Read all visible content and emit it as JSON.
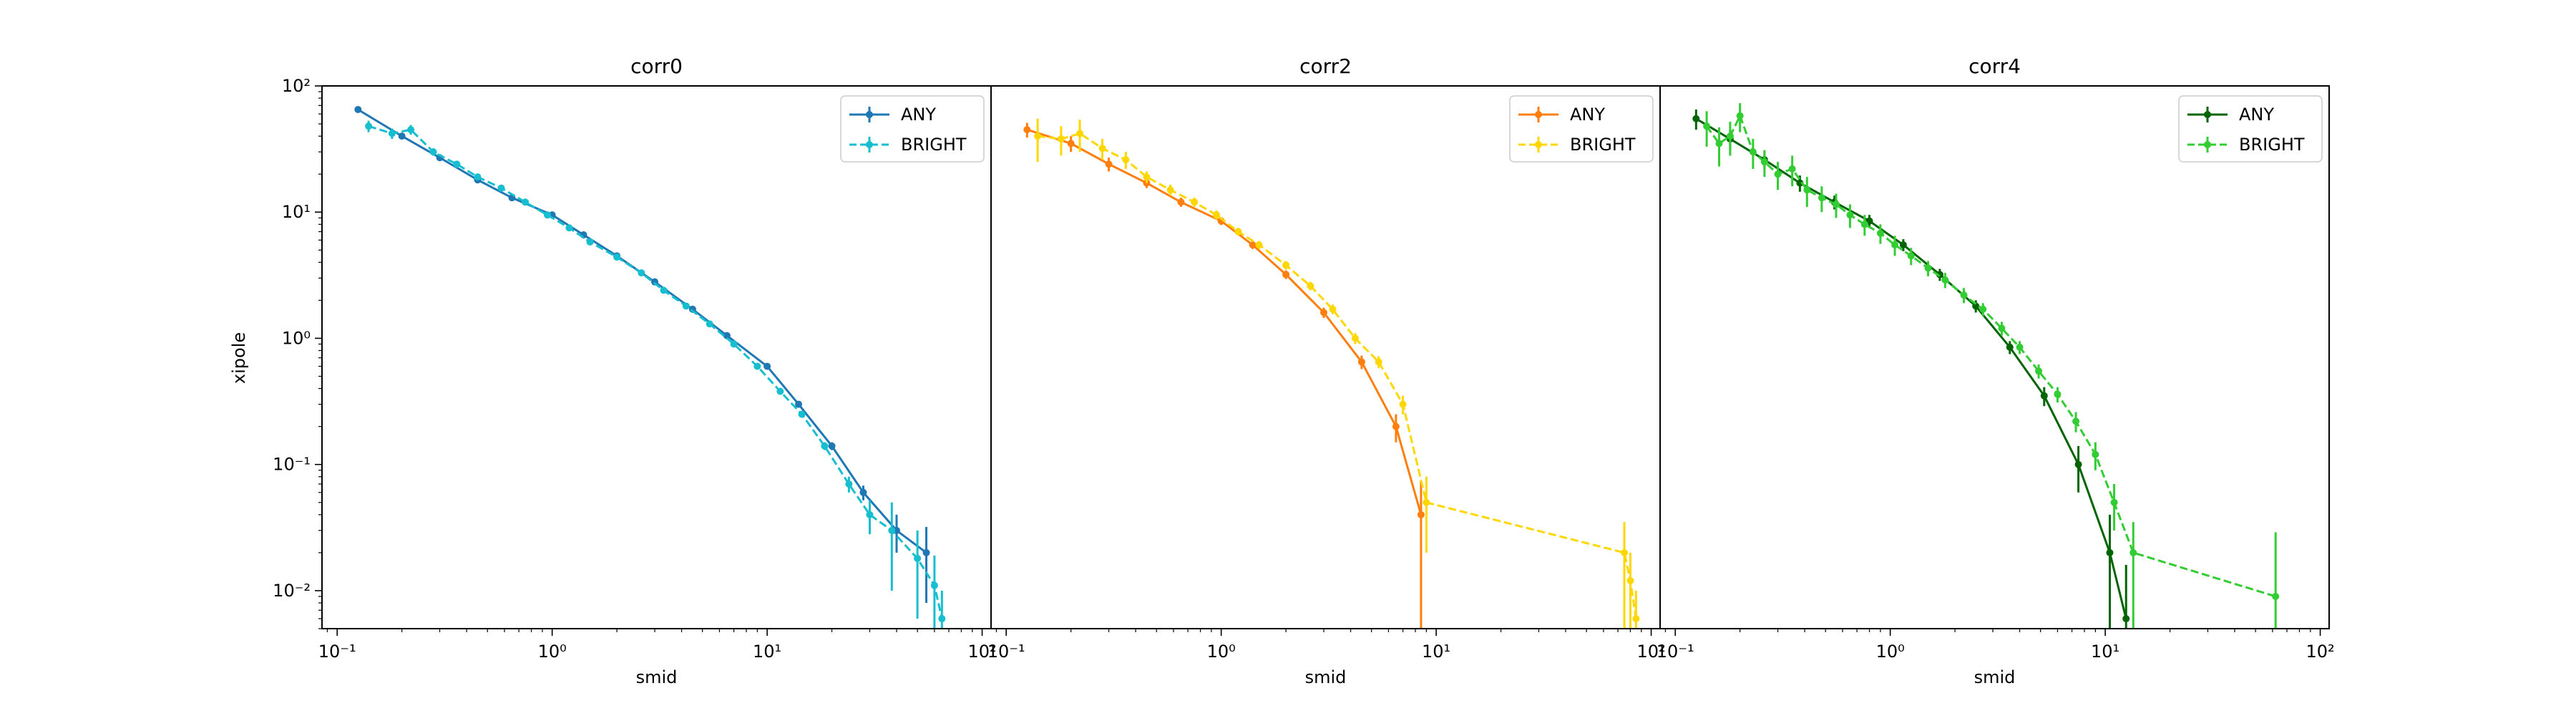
{
  "figure": {
    "ylabel": "xipole",
    "xlabel": "smid"
  },
  "chart_data": [
    {
      "type": "line",
      "title": "corr0",
      "xlabel": "smid",
      "ylabel": "xipole",
      "xscale": "log",
      "yscale": "log",
      "xlim": [
        0.085,
        110
      ],
      "ylim": [
        0.005,
        100
      ],
      "grid": false,
      "legend_position": "top-right",
      "x_ticks": [
        "10⁻¹",
        "10⁰",
        "10¹",
        "10²"
      ],
      "y_ticks": [
        "10⁻²",
        "10⁻¹",
        "10⁰",
        "10¹",
        "10²"
      ],
      "series": [
        {
          "name": "ANY",
          "color": "#1f77b4",
          "linestyle": "solid",
          "x": [
            0.125,
            0.2,
            0.3,
            0.45,
            0.65,
            1,
            1.4,
            2,
            3,
            4.5,
            6.5,
            10,
            14,
            20,
            28,
            40,
            55
          ],
          "y": [
            65,
            40,
            27,
            18,
            13,
            9.5,
            6.6,
            4.5,
            2.8,
            1.7,
            1.05,
            0.6,
            0.3,
            0.14,
            0.06,
            0.03,
            0.02
          ],
          "err": [
            2,
            1.5,
            0.8,
            0.5,
            0.3,
            0.2,
            0.15,
            0.1,
            0.06,
            0.04,
            0.03,
            0.02,
            0.015,
            0.01,
            0.008,
            0.01,
            0.012
          ]
        },
        {
          "name": "BRIGHT",
          "color": "#17becf",
          "linestyle": "dashed",
          "x": [
            0.14,
            0.18,
            0.22,
            0.28,
            0.36,
            0.45,
            0.58,
            0.75,
            0.95,
            1.2,
            1.5,
            2,
            2.6,
            3.3,
            4.2,
            5.4,
            7,
            9,
            11.5,
            14.5,
            18.5,
            24,
            30,
            38,
            50,
            60,
            65
          ],
          "y": [
            48,
            42,
            45,
            30,
            24,
            19,
            15.5,
            12,
            9.5,
            7.5,
            5.8,
            4.4,
            3.3,
            2.4,
            1.8,
            1.3,
            0.9,
            0.6,
            0.38,
            0.25,
            0.14,
            0.07,
            0.04,
            0.03,
            0.018,
            0.011,
            0.006
          ],
          "err": [
            5,
            4,
            4,
            2,
            1.5,
            1,
            0.8,
            0.5,
            0.4,
            0.3,
            0.2,
            0.15,
            0.1,
            0.08,
            0.06,
            0.04,
            0.03,
            0.02,
            0.015,
            0.012,
            0.01,
            0.01,
            0.012,
            0.02,
            0.012,
            0.008,
            0.004
          ]
        }
      ]
    },
    {
      "type": "line",
      "title": "corr2",
      "xlabel": "smid",
      "xscale": "log",
      "yscale": "log",
      "xlim": [
        0.085,
        110
      ],
      "ylim": [
        0.005,
        100
      ],
      "grid": false,
      "legend_position": "top-right",
      "x_ticks": [
        "10⁻¹",
        "10⁰",
        "10¹",
        "10²"
      ],
      "series": [
        {
          "name": "ANY",
          "color": "#ff7f0e",
          "linestyle": "solid",
          "x": [
            0.125,
            0.2,
            0.3,
            0.45,
            0.65,
            1,
            1.4,
            2,
            3,
            4.5,
            6.5,
            8.5
          ],
          "y": [
            45,
            35,
            24,
            17,
            12,
            8.5,
            5.5,
            3.2,
            1.6,
            0.65,
            0.2,
            0.04
          ],
          "err": [
            6,
            5,
            3,
            1.5,
            1,
            0.6,
            0.4,
            0.25,
            0.15,
            0.08,
            0.05,
            0.035
          ]
        },
        {
          "name": "BRIGHT",
          "color": "#ffd700",
          "linestyle": "dashed",
          "x": [
            0.14,
            0.18,
            0.22,
            0.28,
            0.36,
            0.45,
            0.58,
            0.75,
            0.95,
            1.2,
            1.5,
            2,
            2.6,
            3.3,
            4.2,
            5.4,
            7,
            9,
            75,
            80,
            85
          ],
          "y": [
            40,
            38,
            42,
            32,
            26,
            19,
            15,
            12,
            9.5,
            7,
            5.5,
            3.8,
            2.6,
            1.7,
            1.0,
            0.65,
            0.3,
            0.05,
            0.02,
            0.012,
            0.006
          ],
          "err": [
            15,
            10,
            12,
            6,
            4,
            2,
            1.5,
            1,
            0.8,
            0.5,
            0.4,
            0.3,
            0.2,
            0.15,
            0.1,
            0.07,
            0.05,
            0.03,
            0.015,
            0.008,
            0.004
          ]
        }
      ]
    },
    {
      "type": "line",
      "title": "corr4",
      "xlabel": "smid",
      "xscale": "log",
      "yscale": "log",
      "xlim": [
        0.085,
        110
      ],
      "ylim": [
        0.005,
        100
      ],
      "grid": false,
      "legend_position": "top-right",
      "x_ticks": [
        "10⁻¹",
        "10⁰",
        "10¹",
        "10²"
      ],
      "series": [
        {
          "name": "ANY",
          "color": "#006400",
          "linestyle": "solid",
          "x": [
            0.125,
            0.18,
            0.26,
            0.38,
            0.55,
            0.8,
            1.15,
            1.7,
            2.5,
            3.6,
            5.2,
            7.5,
            10.5,
            12.5
          ],
          "y": [
            55,
            38,
            26,
            17,
            12,
            8.5,
            5.5,
            3.2,
            1.8,
            0.85,
            0.35,
            0.1,
            0.02,
            0.006
          ],
          "err": [
            10,
            7,
            4,
            2.5,
            1.5,
            1,
            0.6,
            0.35,
            0.2,
            0.1,
            0.06,
            0.04,
            0.02,
            0.01
          ]
        },
        {
          "name": "BRIGHT",
          "color": "#32cd32",
          "linestyle": "dashed",
          "x": [
            0.14,
            0.16,
            0.18,
            0.2,
            0.23,
            0.26,
            0.3,
            0.35,
            0.41,
            0.48,
            0.56,
            0.65,
            0.76,
            0.9,
            1.05,
            1.25,
            1.5,
            1.8,
            2.2,
            2.7,
            3.3,
            4,
            4.9,
            6,
            7.3,
            9,
            11,
            13.5,
            62
          ],
          "y": [
            48,
            35,
            40,
            58,
            30,
            25,
            20,
            22,
            15,
            13,
            11.5,
            9.5,
            8,
            6.8,
            5.5,
            4.5,
            3.6,
            2.9,
            2.2,
            1.7,
            1.2,
            0.85,
            0.55,
            0.36,
            0.22,
            0.12,
            0.05,
            0.02,
            0.009
          ],
          "err": [
            15,
            12,
            12,
            15,
            8,
            6,
            5,
            6,
            4,
            3,
            2.5,
            2,
            1.5,
            1.2,
            1,
            0.7,
            0.5,
            0.4,
            0.3,
            0.2,
            0.15,
            0.1,
            0.07,
            0.05,
            0.04,
            0.03,
            0.02,
            0.015,
            0.02
          ]
        }
      ]
    }
  ]
}
